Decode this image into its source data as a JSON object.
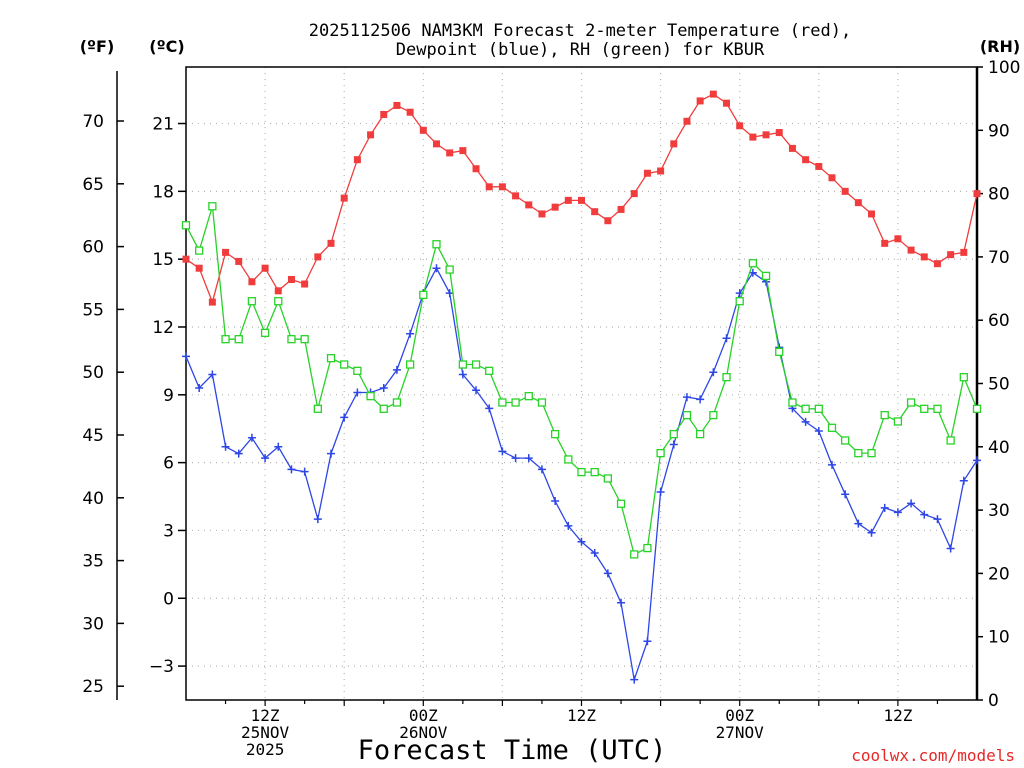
{
  "chart_data": {
    "type": "line",
    "title_line1": "2025112506 NAM3KM Forecast 2-meter Temperature (red),",
    "title_line2": "Dewpoint (blue), RH (green) for KBUR",
    "xlabel": "Forecast Time (UTC)",
    "credit": "coolwx.com/models",
    "unit_labels": {
      "fahrenheit": "(ºF)",
      "celsius": "(ºC)",
      "rh": "(RH)"
    },
    "x_start_hour": 6,
    "x_step_hours": 1,
    "x_range_hours": [
      6,
      66
    ],
    "x_ticks": [
      {
        "hour": 12,
        "lines": [
          "12Z",
          "25NOV",
          "2025"
        ]
      },
      {
        "hour": 24,
        "lines": [
          "00Z",
          "26NOV"
        ]
      },
      {
        "hour": 36,
        "lines": [
          "12Z"
        ]
      },
      {
        "hour": 48,
        "lines": [
          "00Z",
          "27NOV"
        ]
      },
      {
        "hour": 60,
        "lines": [
          "12Z"
        ]
      }
    ],
    "celsius_axis": {
      "range": [
        -4.5,
        23.5
      ],
      "ticks": [
        -3,
        0,
        3,
        6,
        9,
        12,
        15,
        18,
        21
      ]
    },
    "fahrenheit_axis": {
      "ticks": [
        25,
        30,
        35,
        40,
        45,
        50,
        55,
        60,
        65,
        70
      ]
    },
    "rh_axis": {
      "range": [
        0,
        100
      ],
      "ticks": [
        0,
        10,
        20,
        30,
        40,
        50,
        60,
        70,
        80,
        90,
        100
      ]
    },
    "series": [
      {
        "name": "Temperature",
        "axis": "celsius",
        "color": "#f03c3c",
        "marker": "filled-square",
        "values": [
          15.0,
          14.6,
          13.1,
          15.3,
          14.9,
          14.0,
          14.6,
          13.6,
          14.1,
          13.9,
          15.1,
          15.7,
          17.7,
          19.4,
          20.5,
          21.4,
          21.8,
          21.5,
          20.7,
          20.1,
          19.7,
          19.8,
          19.0,
          18.2,
          18.2,
          17.8,
          17.4,
          17.0,
          17.3,
          17.6,
          17.6,
          17.1,
          16.7,
          17.2,
          17.9,
          18.8,
          18.9,
          20.1,
          21.1,
          22.0,
          22.3,
          21.9,
          20.9,
          20.4,
          20.5,
          20.6,
          19.9,
          19.4,
          19.1,
          18.6,
          18.0,
          17.5,
          17.0,
          15.7,
          15.9,
          15.4,
          15.1,
          14.8,
          15.2,
          15.3,
          17.9
        ]
      },
      {
        "name": "Dewpoint",
        "axis": "celsius",
        "color": "#2d46e6",
        "marker": "plus",
        "values": [
          10.7,
          9.3,
          9.9,
          6.7,
          6.4,
          7.1,
          6.2,
          6.7,
          5.7,
          5.6,
          3.5,
          6.4,
          8.0,
          9.1,
          9.1,
          9.3,
          10.1,
          11.7,
          13.5,
          14.6,
          13.5,
          9.9,
          9.2,
          8.4,
          6.5,
          6.2,
          6.2,
          5.7,
          4.3,
          3.2,
          2.5,
          2.0,
          1.1,
          -0.2,
          -3.6,
          -1.9,
          4.7,
          6.8,
          8.9,
          8.8,
          10.0,
          11.5,
          13.5,
          14.4,
          14.0,
          11.1,
          8.4,
          7.8,
          7.4,
          5.9,
          4.6,
          3.3,
          2.9,
          4.0,
          3.8,
          4.2,
          3.7,
          3.5,
          2.2,
          5.2,
          6.1
        ]
      },
      {
        "name": "RH",
        "axis": "rh",
        "color": "#28d228",
        "marker": "open-square",
        "values": [
          75,
          71,
          78,
          57,
          57,
          63,
          58,
          63,
          57,
          57,
          46,
          54,
          53,
          52,
          48,
          46,
          47,
          53,
          64,
          72,
          68,
          53,
          53,
          52,
          47,
          47,
          48,
          47,
          42,
          38,
          36,
          36,
          35,
          31,
          23,
          24,
          39,
          42,
          45,
          42,
          45,
          51,
          63,
          69,
          67,
          55,
          47,
          46,
          46,
          43,
          41,
          39,
          39,
          45,
          44,
          47,
          46,
          46,
          41,
          51,
          46
        ]
      }
    ],
    "grid": true
  }
}
